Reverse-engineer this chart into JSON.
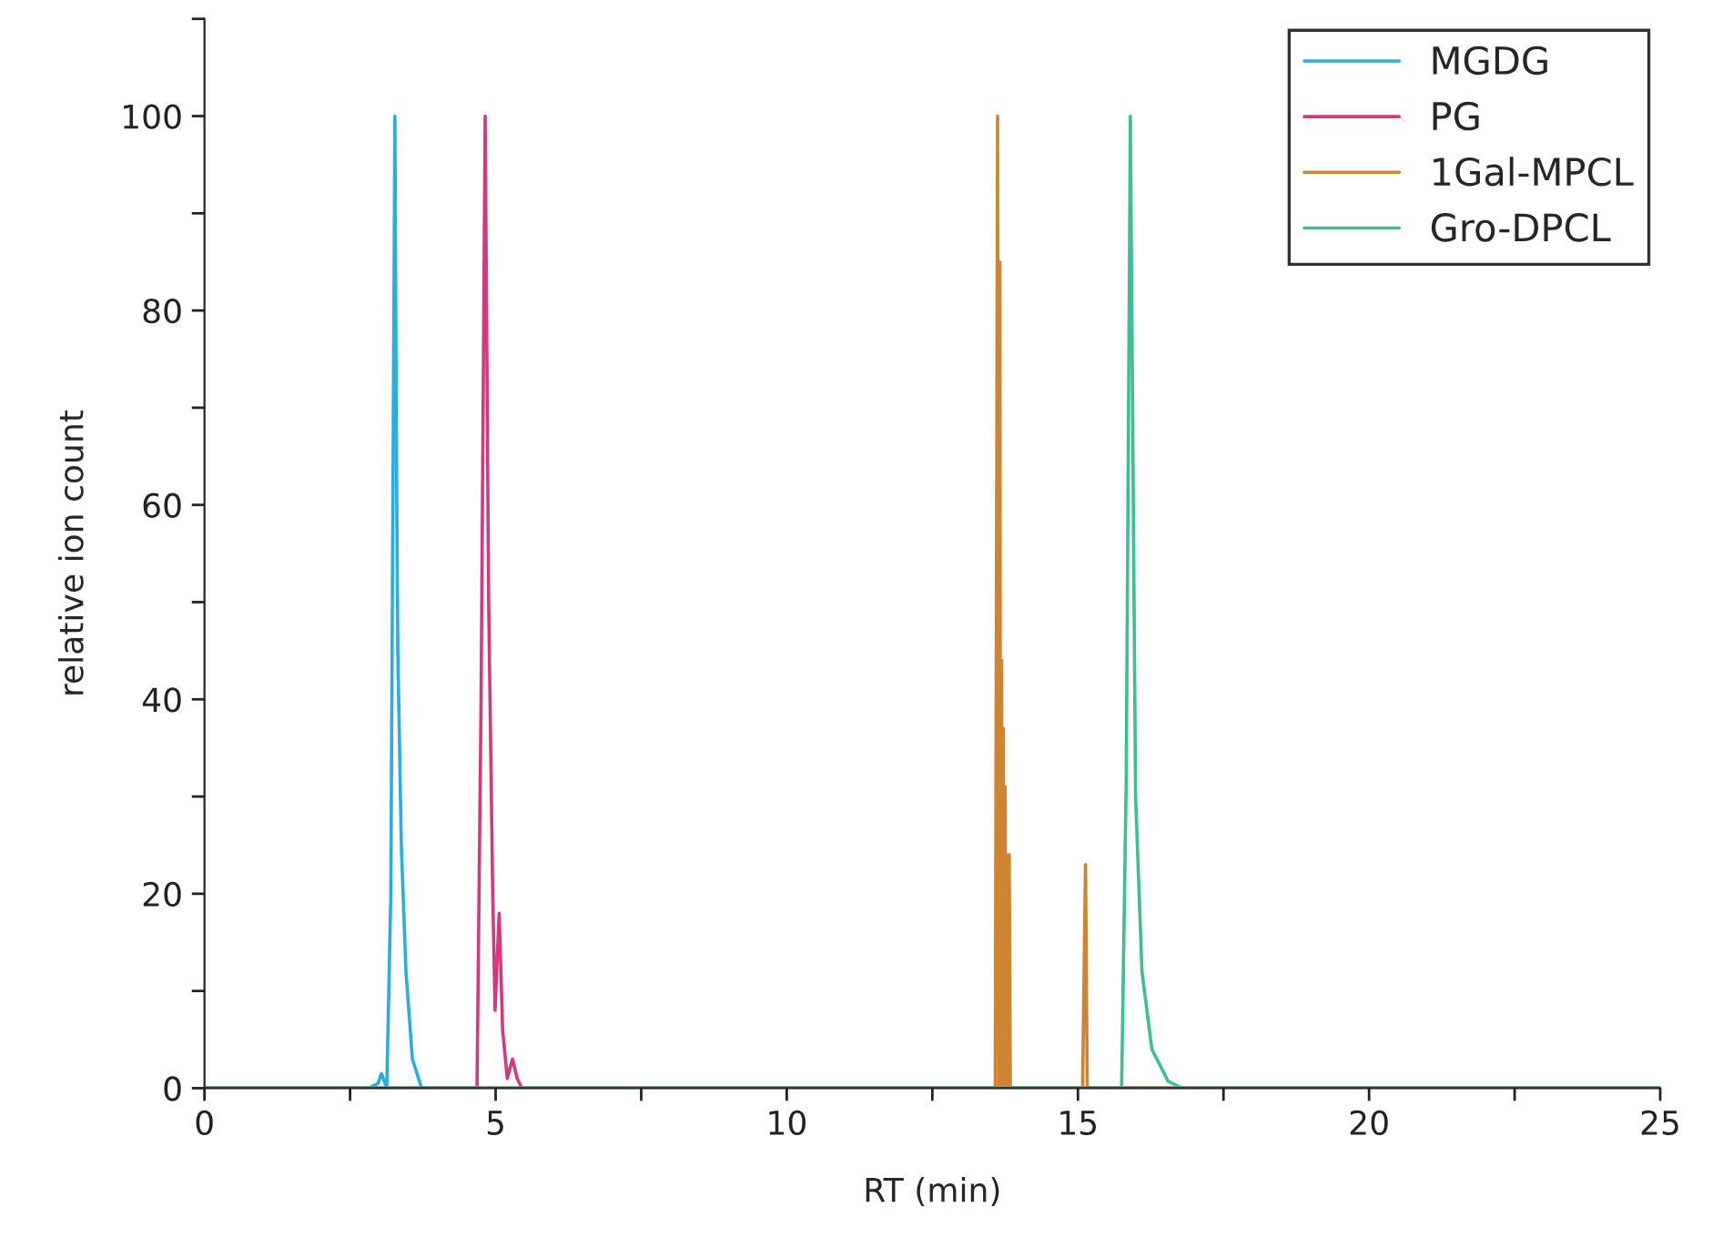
{
  "chart_data": {
    "type": "line",
    "xlabel": "RT (min)",
    "ylabel": "relative ion count",
    "xlim": [
      0,
      25
    ],
    "ylim": [
      0,
      110
    ],
    "xticks": [
      0,
      {
        "value": 2.5,
        "label": null
      },
      5,
      {
        "value": 7.5,
        "label": null
      },
      10,
      {
        "value": 12.5,
        "label": null
      },
      15,
      {
        "value": 17.5,
        "label": null
      },
      20,
      {
        "value": 22.5,
        "label": null
      },
      25
    ],
    "yticks": [
      0,
      {
        "value": 10,
        "label": null
      },
      20,
      {
        "value": 30,
        "label": null
      },
      40,
      {
        "value": 50,
        "label": null
      },
      60,
      {
        "value": 70,
        "label": null
      },
      80,
      {
        "value": 90,
        "label": null
      },
      100,
      {
        "value": 110,
        "label": null
      }
    ],
    "grid": false,
    "legend": "top right",
    "marker": "none",
    "line_style": "solid",
    "series": [
      {
        "name": "MGDG",
        "color": "#2aaee0",
        "x": [
          0,
          2.82,
          2.98,
          3.04,
          3.1,
          3.13,
          3.2,
          3.27,
          3.3,
          3.32,
          3.38,
          3.46,
          3.57,
          3.73,
          25
        ],
        "values": [
          0,
          0,
          0.5,
          1.5,
          0.5,
          0,
          20,
          100,
          62,
          45,
          25,
          12,
          3,
          0,
          0
        ]
      },
      {
        "name": "PG",
        "color": "#d4397f",
        "x": [
          0,
          4.68,
          4.75,
          4.82,
          4.88,
          4.95,
          4.99,
          5.06,
          5.12,
          5.2,
          5.29,
          5.37,
          5.45,
          25
        ],
        "values": [
          0,
          0,
          40,
          100,
          50,
          20,
          8,
          18,
          6,
          1,
          3,
          1,
          0,
          0
        ]
      },
      {
        "name": "1Gal-MPCL",
        "color": "#cf8431",
        "x": [
          0,
          13.58,
          13.62,
          13.64,
          13.66,
          13.67,
          13.69,
          13.7,
          13.72,
          13.73,
          13.75,
          13.76,
          13.78,
          13.8,
          13.82,
          13.84,
          15.08,
          15.13,
          15.16,
          25
        ],
        "values": [
          0,
          0,
          100,
          0,
          85,
          0,
          44,
          0,
          37,
          0,
          31,
          0,
          24,
          0,
          24,
          0,
          0,
          23,
          0,
          0
        ]
      },
      {
        "name": "Gro-DPCL",
        "color": "#3cbf95",
        "x": [
          0,
          15.75,
          15.83,
          15.9,
          15.99,
          16.1,
          16.27,
          16.55,
          16.79,
          25
        ],
        "values": [
          0,
          0,
          32,
          100,
          30,
          12,
          4,
          0.7,
          0,
          0
        ]
      }
    ]
  }
}
